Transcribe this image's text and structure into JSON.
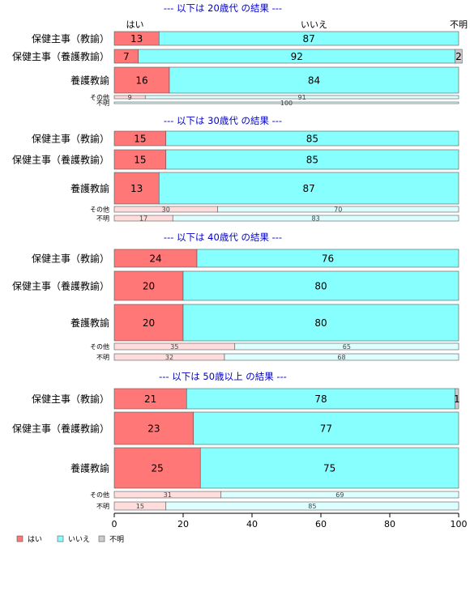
{
  "colors": {
    "yes": "#ff7777",
    "no": "#88ffff",
    "unknown": "#cccccc",
    "yes_light": "#ffdddd",
    "no_light": "#ddffff",
    "title": "#0000cc"
  },
  "column_labels": {
    "yes": "はい",
    "no": "いいえ",
    "unknown": "不明"
  },
  "legend": [
    {
      "key": "yes",
      "label": "はい"
    },
    {
      "key": "no",
      "label": "いいえ"
    },
    {
      "key": "unknown",
      "label": "不明"
    }
  ],
  "chart_data": {
    "type": "bar",
    "orientation": "horizontal-stacked-100",
    "xlim": [
      0,
      100
    ],
    "xticks": [
      0,
      20,
      40,
      60,
      80,
      100
    ],
    "series_names": [
      "はい",
      "いいえ",
      "不明"
    ],
    "panels": [
      {
        "title": "--- 以下は 20歳代 の結果 ---",
        "rows": [
          {
            "label": "保健主事（教諭）",
            "size": "large",
            "values": [
              13,
              87,
              0
            ],
            "labels": [
              "13",
              "87",
              ""
            ]
          },
          {
            "label": "保健主事（養護教諭）",
            "size": "medium",
            "values": [
              7,
              92,
              2
            ],
            "labels": [
              "7",
              "92",
              "2"
            ]
          },
          {
            "label": "養護教諭",
            "size": "xlarge",
            "values": [
              16,
              84,
              0
            ],
            "labels": [
              "16",
              "84",
              ""
            ]
          },
          {
            "label": "その他",
            "size": "small",
            "values": [
              9,
              91,
              0
            ],
            "labels": [
              "9",
              "91",
              ""
            ]
          },
          {
            "label": "不明",
            "size": "tiny",
            "values": [
              0,
              100,
              0
            ],
            "labels": [
              "",
              "100",
              ""
            ]
          }
        ]
      },
      {
        "title": "--- 以下は 30歳代 の結果 ---",
        "rows": [
          {
            "label": "保健主事（教諭）",
            "size": "large",
            "values": [
              15,
              85,
              0
            ],
            "labels": [
              "15",
              "85",
              ""
            ]
          },
          {
            "label": "保健主事（養護教諭）",
            "size": "large",
            "values": [
              15,
              85,
              0
            ],
            "labels": [
              "15",
              "85",
              ""
            ]
          },
          {
            "label": "養護教諭",
            "size": "xlarge",
            "values": [
              13,
              87,
              0
            ],
            "labels": [
              "13",
              "87",
              ""
            ]
          },
          {
            "label": "その他",
            "size": "small",
            "values": [
              30,
              70,
              0
            ],
            "labels": [
              "30",
              "70",
              ""
            ]
          },
          {
            "label": "不明",
            "size": "small",
            "values": [
              17,
              83,
              0
            ],
            "labels": [
              "17",
              "83",
              ""
            ]
          }
        ]
      },
      {
        "title": "--- 以下は 40歳代 の結果 ---",
        "rows": [
          {
            "label": "保健主事（教諭）",
            "size": "large",
            "values": [
              24,
              76,
              0
            ],
            "labels": [
              "24",
              "76",
              ""
            ]
          },
          {
            "label": "保健主事（養護教諭）",
            "size": "xlarge",
            "values": [
              20,
              80,
              0
            ],
            "labels": [
              "20",
              "80",
              ""
            ]
          },
          {
            "label": "養護教諭",
            "size": "xxlarge",
            "values": [
              20,
              80,
              0
            ],
            "labels": [
              "20",
              "80",
              ""
            ]
          },
          {
            "label": "その他",
            "size": "small",
            "values": [
              35,
              65,
              0
            ],
            "labels": [
              "35",
              "65",
              ""
            ]
          },
          {
            "label": "不明",
            "size": "small",
            "values": [
              32,
              68,
              0
            ],
            "labels": [
              "32",
              "68",
              ""
            ]
          }
        ]
      },
      {
        "title": "--- 以下は 50歳以上 の結果 ---",
        "rows": [
          {
            "label": "保健主事（教諭）",
            "size": "large",
            "values": [
              21,
              78,
              1
            ],
            "labels": [
              "21",
              "78",
              "1"
            ]
          },
          {
            "label": "保健主事（養護教諭）",
            "size": "xlarge",
            "values": [
              23,
              77,
              0
            ],
            "labels": [
              "23",
              "77",
              ""
            ]
          },
          {
            "label": "養護教諭",
            "size": "xxlarge",
            "values": [
              25,
              75,
              0
            ],
            "labels": [
              "25",
              "75",
              ""
            ]
          },
          {
            "label": "その他",
            "size": "small",
            "values": [
              31,
              69,
              0
            ],
            "labels": [
              "31",
              "69",
              ""
            ]
          },
          {
            "label": "不明",
            "size": "small",
            "values": [
              15,
              85,
              0
            ],
            "labels": [
              "15",
              "85",
              ""
            ]
          }
        ]
      }
    ]
  }
}
